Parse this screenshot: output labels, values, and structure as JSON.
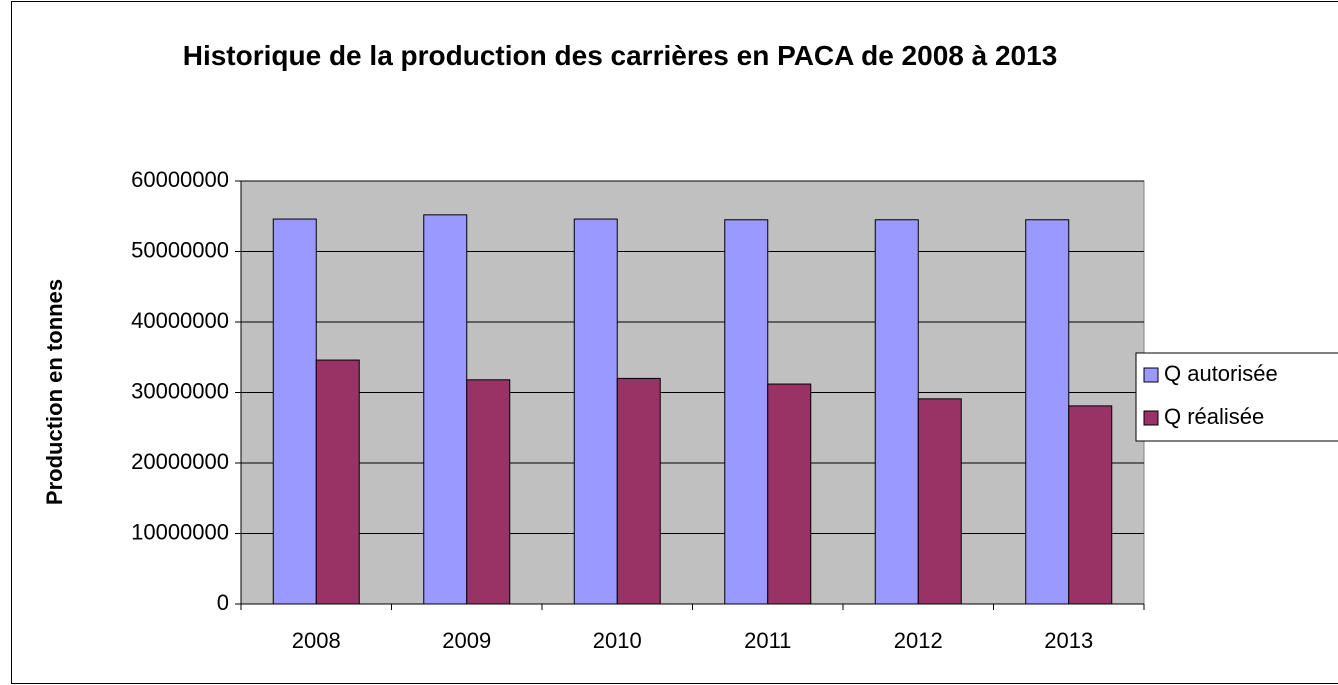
{
  "chart_data": {
    "type": "bar",
    "title": "Historique de la production des carrières en PACA de 2008 à 2013",
    "y_label": "Production en tonnes",
    "categories": [
      "2008",
      "2009",
      "2010",
      "2011",
      "2012",
      "2013"
    ],
    "series": [
      {
        "name": "Q autorisée",
        "color": "#9999ff",
        "values": [
          54600000,
          55200000,
          54600000,
          54500000,
          54500000,
          54500000
        ]
      },
      {
        "name": "Q réalisée",
        "color": "#993366",
        "values": [
          34600000,
          31800000,
          32000000,
          31200000,
          29100000,
          28100000
        ]
      }
    ],
    "ylim": [
      0,
      60000000
    ],
    "yticks": [
      0,
      10000000,
      20000000,
      30000000,
      40000000,
      50000000,
      60000000
    ],
    "grid": true,
    "plot_background": "#c0c0c0",
    "legend": "right"
  }
}
